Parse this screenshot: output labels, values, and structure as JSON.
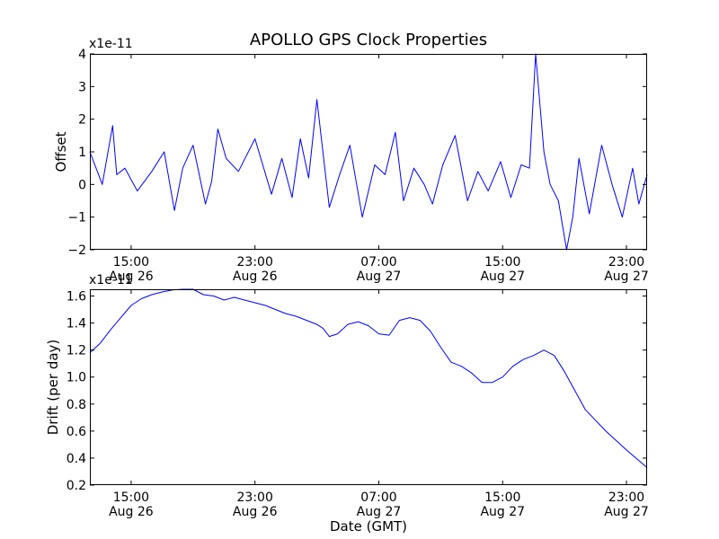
{
  "colors": {
    "series": "#0000ff",
    "axis": "#000000",
    "background": "#ffffff"
  },
  "chart_data": [
    {
      "type": "line",
      "title": "APOLLO GPS Clock Properties",
      "xlabel": "",
      "ylabel": "Offset",
      "scale_label": "x1e-11",
      "ylim": [
        -2,
        4
      ],
      "yticks": [
        -2,
        -1,
        0,
        1,
        2,
        3,
        4
      ],
      "ytick_labels": [
        "−2",
        "−1",
        "0",
        "1",
        "2",
        "3",
        "4"
      ],
      "xlim_hours": [
        11,
        38
      ],
      "xticks": [
        {
          "hour": 13,
          "time": "15:00",
          "date": "Aug 26"
        },
        {
          "hour": 19,
          "time": "23:00",
          "date": "Aug 26"
        },
        {
          "hour": 25,
          "time": "07:00",
          "date": "Aug 27"
        },
        {
          "hour": 31,
          "time": "15:00",
          "date": "Aug 27"
        },
        {
          "hour": 37,
          "time": "23:00",
          "date": "Aug 27"
        }
      ],
      "series": [
        {
          "name": "Offset",
          "x_hours": [
            11.0,
            11.6,
            12.1,
            12.3,
            12.7,
            13.3,
            14.0,
            14.6,
            15.1,
            15.5,
            16.0,
            16.6,
            16.9,
            17.2,
            17.6,
            18.2,
            19.0,
            19.8,
            20.3,
            20.8,
            21.2,
            21.6,
            22.0,
            22.6,
            23.1,
            23.6,
            24.2,
            24.8,
            25.3,
            25.8,
            26.2,
            26.7,
            27.2,
            27.6,
            28.1,
            28.7,
            29.3,
            29.8,
            30.3,
            30.9,
            31.4,
            31.9,
            32.3,
            32.6,
            32.8,
            33.0,
            33.3,
            33.7,
            34.1,
            34.4,
            34.7,
            35.2,
            35.8,
            36.3,
            36.8,
            37.3,
            37.6,
            38.0
          ],
          "y": [
            1.0,
            0.0,
            1.8,
            0.3,
            0.5,
            -0.2,
            0.4,
            1.0,
            -0.8,
            0.5,
            1.2,
            -0.6,
            0.1,
            1.7,
            0.8,
            0.4,
            1.4,
            -0.3,
            0.8,
            -0.4,
            1.4,
            0.2,
            2.6,
            -0.7,
            0.3,
            1.2,
            -1.0,
            0.6,
            0.3,
            1.6,
            -0.5,
            0.5,
            0.0,
            -0.6,
            0.6,
            1.5,
            -0.5,
            0.4,
            -0.2,
            0.7,
            -0.4,
            0.6,
            0.5,
            4.0,
            2.5,
            1.0,
            0.0,
            -0.5,
            -2.0,
            -1.0,
            0.8,
            -0.9,
            1.2,
            0.0,
            -1.0,
            0.5,
            -0.6,
            0.3
          ]
        }
      ]
    },
    {
      "type": "line",
      "title": "",
      "xlabel": "Date (GMT)",
      "ylabel": "Drift (per day)",
      "scale_label": "x1e-11",
      "ylim": [
        0.2,
        1.65
      ],
      "yticks": [
        0.2,
        0.4,
        0.6,
        0.8,
        1.0,
        1.2,
        1.4,
        1.6
      ],
      "ytick_labels": [
        "0.2",
        "0.4",
        "0.6",
        "0.8",
        "1.0",
        "1.2",
        "1.4",
        "1.6"
      ],
      "xlim_hours": [
        11,
        38
      ],
      "xticks": [
        {
          "hour": 13,
          "time": "15:00",
          "date": "Aug 26"
        },
        {
          "hour": 19,
          "time": "23:00",
          "date": "Aug 26"
        },
        {
          "hour": 25,
          "time": "07:00",
          "date": "Aug 27"
        },
        {
          "hour": 31,
          "time": "15:00",
          "date": "Aug 27"
        },
        {
          "hour": 37,
          "time": "23:00",
          "date": "Aug 27"
        }
      ],
      "series": [
        {
          "name": "Drift",
          "x_hours": [
            11.0,
            11.5,
            12.0,
            12.5,
            13.0,
            13.5,
            14.0,
            14.5,
            15.0,
            15.5,
            16.0,
            16.5,
            17.0,
            17.5,
            18.0,
            18.5,
            19.0,
            19.5,
            20.0,
            20.5,
            21.0,
            21.5,
            22.0,
            22.3,
            22.6,
            23.0,
            23.5,
            24.0,
            24.5,
            25.0,
            25.5,
            26.0,
            26.5,
            27.0,
            27.5,
            28.0,
            28.5,
            29.0,
            29.5,
            30.0,
            30.5,
            31.0,
            31.5,
            32.0,
            32.5,
            33.0,
            33.5,
            34.0,
            35.0,
            36.0,
            37.0,
            38.0
          ],
          "y": [
            1.18,
            1.25,
            1.35,
            1.44,
            1.53,
            1.58,
            1.61,
            1.63,
            1.645,
            1.65,
            1.65,
            1.61,
            1.6,
            1.57,
            1.59,
            1.57,
            1.55,
            1.53,
            1.5,
            1.47,
            1.45,
            1.42,
            1.39,
            1.36,
            1.3,
            1.32,
            1.39,
            1.41,
            1.38,
            1.32,
            1.31,
            1.42,
            1.44,
            1.42,
            1.34,
            1.22,
            1.11,
            1.08,
            1.03,
            0.96,
            0.96,
            1.0,
            1.08,
            1.13,
            1.16,
            1.2,
            1.16,
            1.04,
            0.76,
            0.6,
            0.46,
            0.33
          ]
        }
      ]
    }
  ]
}
